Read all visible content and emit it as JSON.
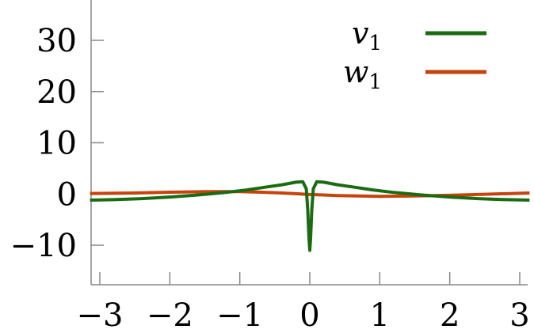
{
  "chart_data": {
    "type": "line",
    "title": "",
    "xlabel": "",
    "ylabel": "",
    "xlim": [
      -3.14159,
      3.14159
    ],
    "ylim": [
      -18,
      38
    ],
    "x_ticks": [
      -3,
      -2,
      -1,
      0,
      1,
      2,
      3
    ],
    "x_tick_labels": [
      "−3",
      "−2",
      "−1",
      "0",
      "1",
      "2",
      "3"
    ],
    "y_ticks": [
      -10,
      0,
      10,
      20,
      30
    ],
    "y_tick_labels": [
      "−10",
      "0",
      "10",
      "20",
      "30"
    ],
    "grid": false,
    "legend_position": "top-right",
    "series": [
      {
        "name": "v",
        "name_subscript": "1",
        "color": "#1a6b12",
        "x": [
          -3.14,
          -2.8,
          -2.4,
          -2.0,
          -1.6,
          -1.2,
          -0.9,
          -0.6,
          -0.4,
          -0.2,
          -0.1,
          -0.05,
          -0.03,
          -0.01,
          0.0,
          0.01,
          0.03,
          0.05,
          0.1,
          0.2,
          0.4,
          0.6,
          0.9,
          1.2,
          1.6,
          2.0,
          2.4,
          2.8,
          3.14
        ],
        "values": [
          -1.2,
          -1.1,
          -0.9,
          -0.6,
          -0.2,
          0.3,
          0.8,
          1.4,
          1.8,
          2.3,
          2.4,
          1.0,
          -3.0,
          -9.0,
          -11.0,
          -9.0,
          -3.0,
          1.0,
          2.4,
          2.3,
          1.8,
          1.4,
          0.8,
          0.3,
          -0.2,
          -0.6,
          -0.9,
          -1.1,
          -1.2
        ]
      },
      {
        "name": "w",
        "name_subscript": "1",
        "color": "#c6440c",
        "x": [
          -3.14,
          -2.5,
          -2.0,
          -1.5,
          -1.0,
          -0.7,
          -0.4,
          -0.2,
          0.0,
          0.2,
          0.4,
          0.7,
          1.0,
          1.5,
          2.0,
          2.5,
          3.14
        ],
        "values": [
          0.1,
          0.2,
          0.35,
          0.45,
          0.45,
          0.35,
          0.2,
          0.05,
          -0.1,
          -0.2,
          -0.3,
          -0.4,
          -0.45,
          -0.4,
          -0.25,
          -0.05,
          0.2
        ]
      }
    ]
  }
}
